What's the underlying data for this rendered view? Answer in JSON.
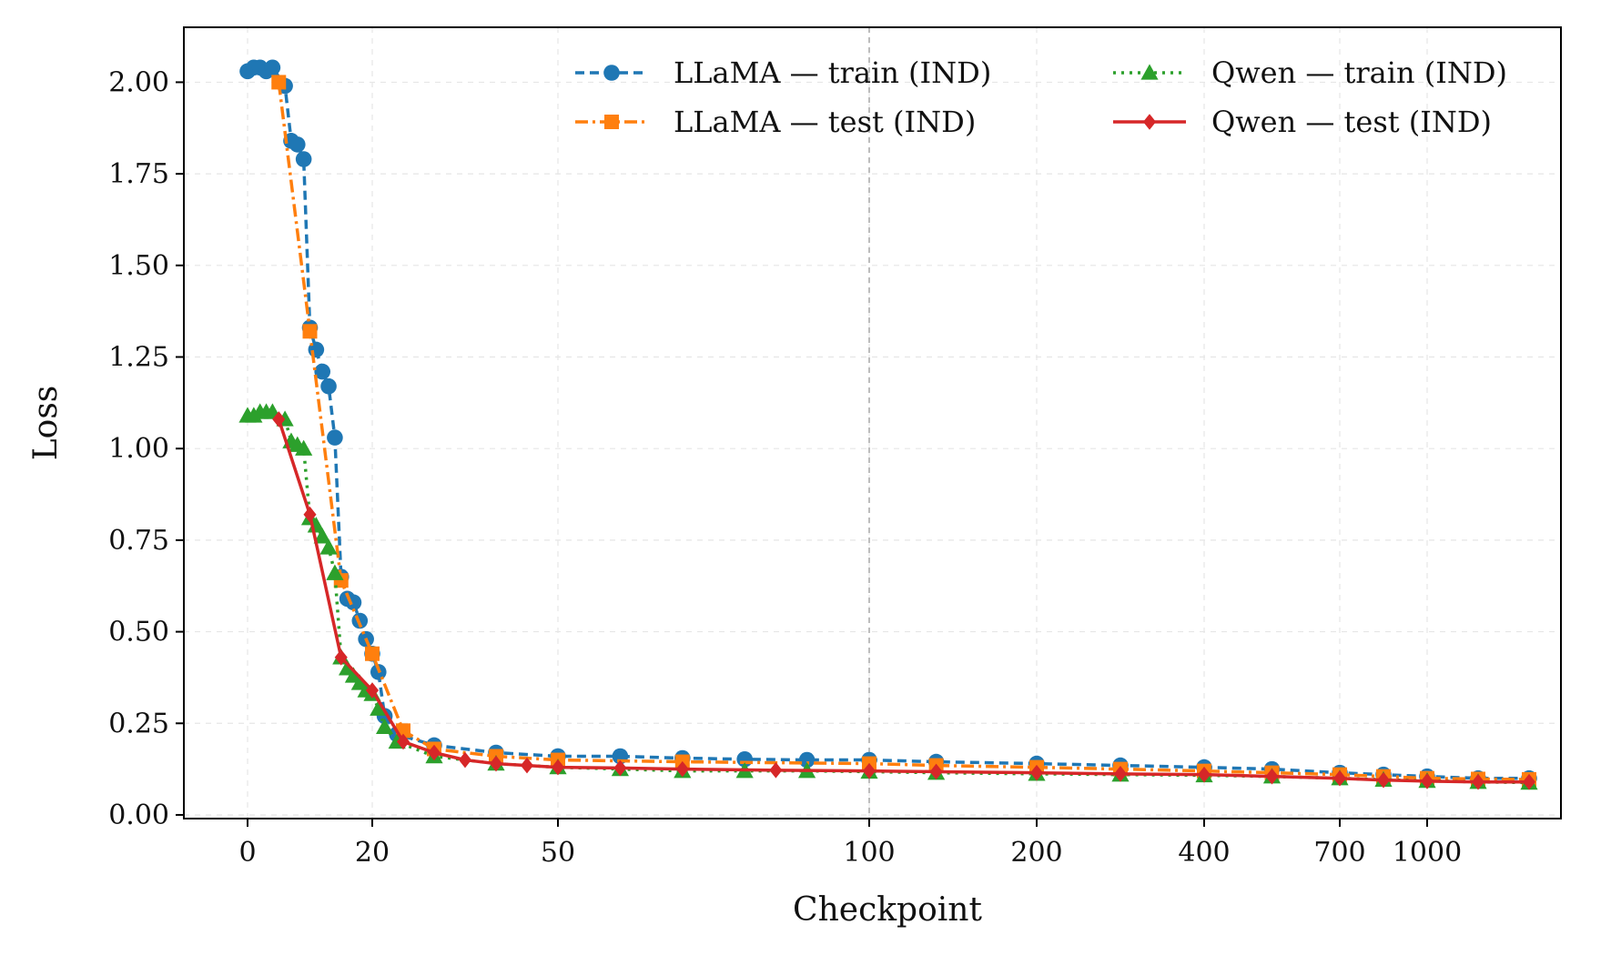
{
  "chart_data": {
    "type": "line",
    "title": "",
    "xlabel": "Checkpoint",
    "ylabel": "Loss",
    "x_scale": "piecewise (linear 0–20, log-like compression above 20)",
    "x_ticks": [
      0,
      20,
      50,
      100,
      200,
      400,
      700,
      1000
    ],
    "x_tick_labels": [
      "0",
      "20",
      "50",
      "100",
      "200",
      "400",
      "700",
      "1000"
    ],
    "y_ticks": [
      0.0,
      0.25,
      0.5,
      0.75,
      1.0,
      1.25,
      1.5,
      1.75,
      2.0
    ],
    "y_tick_labels": [
      "0.00",
      "0.25",
      "0.50",
      "0.75",
      "1.00",
      "1.25",
      "1.50",
      "1.75",
      "2.00"
    ],
    "ylim": [
      -0.01,
      2.15
    ],
    "grid": true,
    "vline_x": 100,
    "legend": {
      "placement": "top-right",
      "columns": 2
    },
    "series": [
      {
        "name": "LLaMA — train (IND)",
        "color": "#1f77b4",
        "line_style": "dashed",
        "marker": "circle",
        "points": [
          [
            0,
            2.03
          ],
          [
            1,
            2.04
          ],
          [
            2,
            2.04
          ],
          [
            3,
            2.03
          ],
          [
            4,
            2.04
          ],
          [
            6,
            1.99
          ],
          [
            7,
            1.84
          ],
          [
            8,
            1.83
          ],
          [
            9,
            1.79
          ],
          [
            10,
            1.33
          ],
          [
            11,
            1.27
          ],
          [
            12,
            1.21
          ],
          [
            13,
            1.17
          ],
          [
            14,
            1.03
          ],
          [
            15,
            0.65
          ],
          [
            16,
            0.59
          ],
          [
            17,
            0.58
          ],
          [
            18,
            0.53
          ],
          [
            19,
            0.48
          ],
          [
            20,
            0.44
          ],
          [
            21,
            0.39
          ],
          [
            22,
            0.27
          ],
          [
            24,
            0.22
          ],
          [
            30,
            0.19
          ],
          [
            40,
            0.17
          ],
          [
            50,
            0.16
          ],
          [
            60,
            0.16
          ],
          [
            70,
            0.155
          ],
          [
            80,
            0.152
          ],
          [
            90,
            0.15
          ],
          [
            100,
            0.15
          ],
          [
            140,
            0.145
          ],
          [
            200,
            0.14
          ],
          [
            300,
            0.135
          ],
          [
            400,
            0.13
          ],
          [
            550,
            0.125
          ],
          [
            700,
            0.115
          ],
          [
            850,
            0.11
          ],
          [
            1000,
            0.105
          ],
          [
            1200,
            0.1
          ],
          [
            1400,
            0.1
          ]
        ]
      },
      {
        "name": "LLaMA — test (IND)",
        "color": "#ff7f0e",
        "line_style": "dashdot",
        "marker": "square",
        "points": [
          [
            5,
            2.0
          ],
          [
            10,
            1.32
          ],
          [
            15,
            0.64
          ],
          [
            20,
            0.44
          ],
          [
            25,
            0.23
          ],
          [
            30,
            0.18
          ],
          [
            40,
            0.16
          ],
          [
            50,
            0.15
          ],
          [
            70,
            0.145
          ],
          [
            100,
            0.14
          ],
          [
            140,
            0.135
          ],
          [
            200,
            0.13
          ],
          [
            300,
            0.125
          ],
          [
            400,
            0.12
          ],
          [
            550,
            0.115
          ],
          [
            700,
            0.11
          ],
          [
            850,
            0.105
          ],
          [
            1000,
            0.1
          ],
          [
            1200,
            0.098
          ],
          [
            1400,
            0.097
          ]
        ]
      },
      {
        "name": "Qwen — train (IND)",
        "color": "#2ca02c",
        "line_style": "dotted",
        "marker": "triangle",
        "points": [
          [
            0,
            1.09
          ],
          [
            1,
            1.09
          ],
          [
            2,
            1.1
          ],
          [
            3,
            1.1
          ],
          [
            4,
            1.1
          ],
          [
            6,
            1.08
          ],
          [
            7,
            1.02
          ],
          [
            8,
            1.01
          ],
          [
            9,
            1.0
          ],
          [
            10,
            0.81
          ],
          [
            11,
            0.79
          ],
          [
            12,
            0.76
          ],
          [
            13,
            0.73
          ],
          [
            14,
            0.66
          ],
          [
            15,
            0.43
          ],
          [
            16,
            0.4
          ],
          [
            17,
            0.38
          ],
          [
            18,
            0.36
          ],
          [
            19,
            0.34
          ],
          [
            20,
            0.33
          ],
          [
            21,
            0.29
          ],
          [
            22,
            0.24
          ],
          [
            24,
            0.2
          ],
          [
            30,
            0.16
          ],
          [
            40,
            0.14
          ],
          [
            50,
            0.13
          ],
          [
            60,
            0.125
          ],
          [
            70,
            0.12
          ],
          [
            80,
            0.12
          ],
          [
            90,
            0.12
          ],
          [
            100,
            0.118
          ],
          [
            140,
            0.115
          ],
          [
            200,
            0.112
          ],
          [
            300,
            0.11
          ],
          [
            400,
            0.108
          ],
          [
            550,
            0.105
          ],
          [
            700,
            0.1
          ],
          [
            850,
            0.096
          ],
          [
            1000,
            0.093
          ],
          [
            1200,
            0.09
          ],
          [
            1400,
            0.088
          ]
        ]
      },
      {
        "name": "Qwen — test (IND)",
        "color": "#d62728",
        "line_style": "solid",
        "marker": "diamond",
        "points": [
          [
            5,
            1.08
          ],
          [
            10,
            0.82
          ],
          [
            15,
            0.43
          ],
          [
            20,
            0.34
          ],
          [
            25,
            0.2
          ],
          [
            30,
            0.17
          ],
          [
            35,
            0.15
          ],
          [
            40,
            0.14
          ],
          [
            45,
            0.135
          ],
          [
            50,
            0.13
          ],
          [
            60,
            0.128
          ],
          [
            70,
            0.125
          ],
          [
            85,
            0.122
          ],
          [
            100,
            0.12
          ],
          [
            140,
            0.118
          ],
          [
            200,
            0.115
          ],
          [
            300,
            0.112
          ],
          [
            400,
            0.11
          ],
          [
            550,
            0.105
          ],
          [
            700,
            0.1
          ],
          [
            850,
            0.095
          ],
          [
            1000,
            0.092
          ],
          [
            1200,
            0.09
          ],
          [
            1400,
            0.09
          ]
        ]
      }
    ]
  }
}
